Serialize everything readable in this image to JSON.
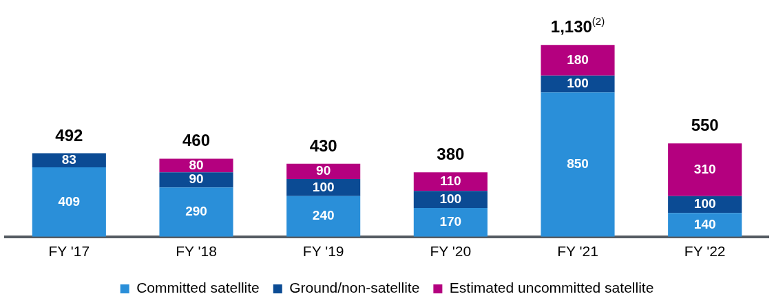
{
  "chart_data": {
    "type": "bar",
    "stacked": true,
    "data_labels": true,
    "legend": "bottom",
    "grid": false,
    "categories": [
      "FY '17",
      "FY '18",
      "FY '19",
      "FY '20",
      "FY '21",
      "FY '22"
    ],
    "series": [
      {
        "name": "Committed satellite",
        "color": "#2a8fd9",
        "values": [
          409,
          290,
          240,
          170,
          850,
          140
        ]
      },
      {
        "name": "Ground/non-satellite",
        "color": "#0b4b94",
        "values": [
          83,
          90,
          100,
          100,
          100,
          100
        ]
      },
      {
        "name": "Estimated uncommitted satellite",
        "color": "#b4007f",
        "values": [
          null,
          80,
          90,
          110,
          180,
          310
        ]
      }
    ],
    "totals": [
      "492",
      "460",
      "430",
      "380",
      "1,130$^{(2)}$",
      "550"
    ]
  }
}
